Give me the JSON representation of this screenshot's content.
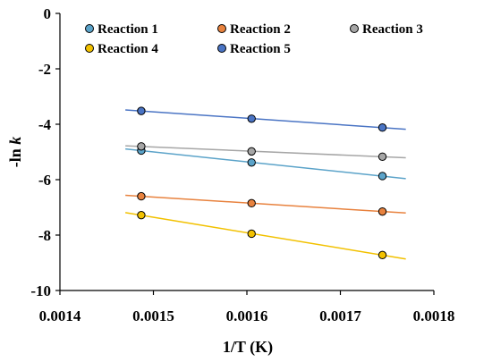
{
  "chart_data": {
    "type": "scatter",
    "xlabel": "1/T (K)",
    "ylabel": "-ln k",
    "xlim": [
      0.0014,
      0.0018
    ],
    "ylim": [
      -10,
      0
    ],
    "xticks": [
      "0.0014",
      "0.0015",
      "0.0016",
      "0.0017",
      "0.0018"
    ],
    "yticks": [
      "0",
      "-2",
      "-4",
      "-6",
      "-8",
      "-10"
    ],
    "grid": false,
    "legend": "top",
    "trendline_x_range": [
      0.00147,
      0.00177
    ],
    "series": [
      {
        "name": "Reaction 1",
        "color": "#5ba3c9",
        "x": [
          0.001487,
          0.001605,
          0.001745
        ],
        "y": [
          -4.95,
          -5.38,
          -5.87
        ]
      },
      {
        "name": "Reaction 2",
        "color": "#e8823e",
        "x": [
          0.001487,
          0.001605,
          0.001745
        ],
        "y": [
          -6.6,
          -6.85,
          -7.15
        ]
      },
      {
        "name": "Reaction 3",
        "color": "#a6a6a6",
        "x": [
          0.001487,
          0.001605,
          0.001745
        ],
        "y": [
          -4.8,
          -4.98,
          -5.17
        ]
      },
      {
        "name": "Reaction 4",
        "color": "#f2c100",
        "x": [
          0.001487,
          0.001605,
          0.001745
        ],
        "y": [
          -7.28,
          -7.95,
          -8.72
        ]
      },
      {
        "name": "Reaction 5",
        "color": "#4a74c4",
        "x": [
          0.001487,
          0.001605,
          0.001745
        ],
        "y": [
          -3.52,
          -3.8,
          -4.12
        ]
      }
    ]
  }
}
